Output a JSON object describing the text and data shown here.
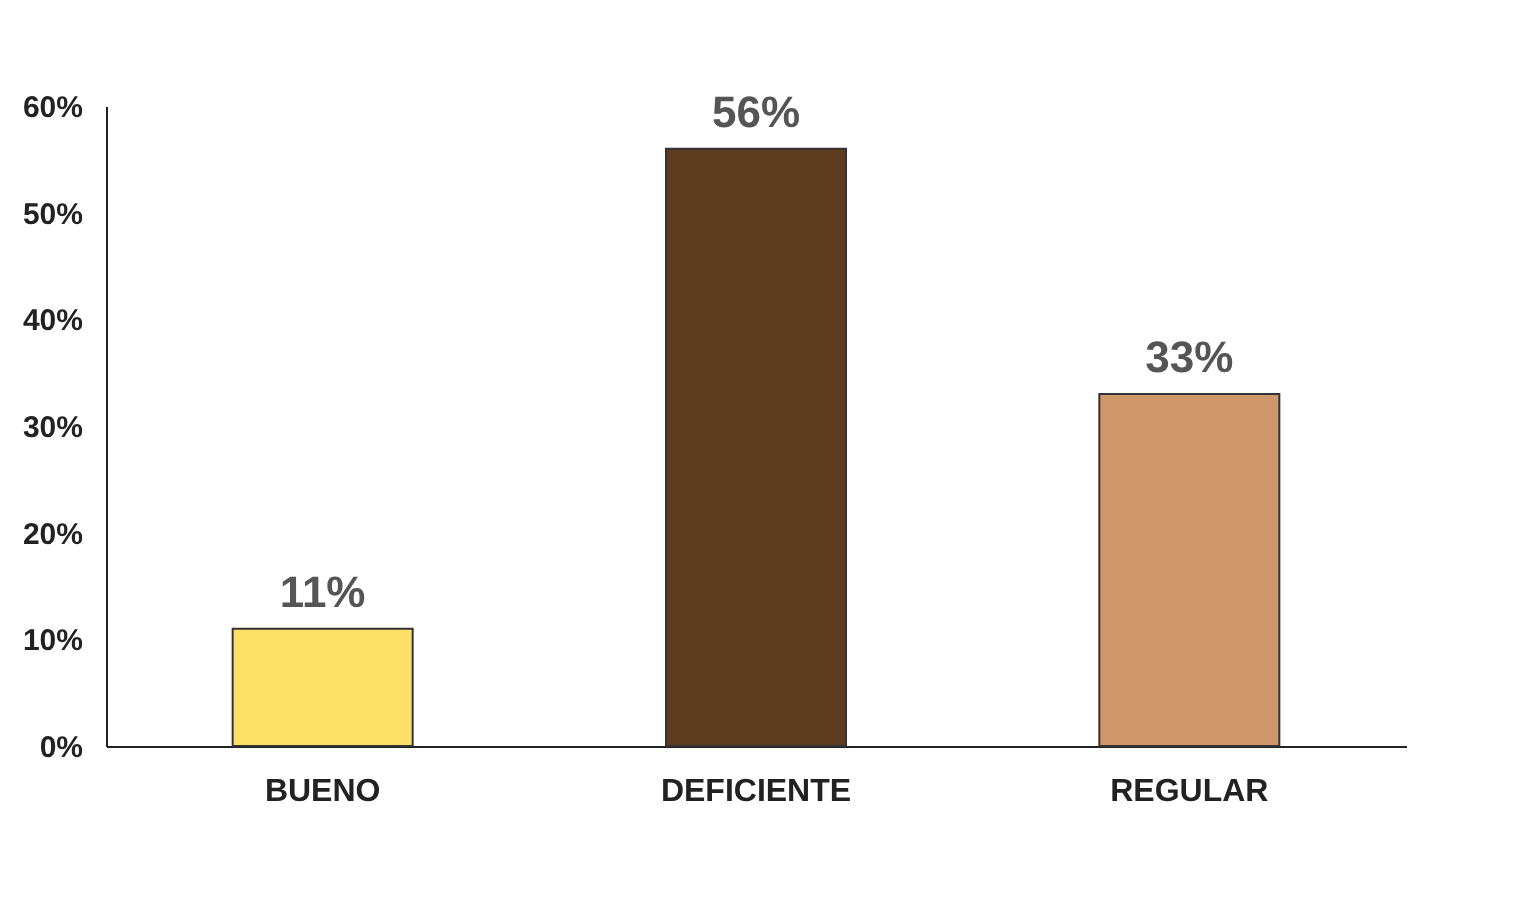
{
  "chart_data": {
    "type": "bar",
    "categories": [
      "BUENO",
      "DEFICIENTE",
      "REGULAR"
    ],
    "values": [
      11,
      56,
      33
    ],
    "colors": [
      "#fde068",
      "#5c3b1e",
      "#d0976a"
    ],
    "value_labels": [
      "11%",
      "56%",
      "33%"
    ],
    "ylim": [
      0,
      60
    ],
    "yticks": [
      {
        "value": 0,
        "label": "0%"
      },
      {
        "value": 10,
        "label": "10%"
      },
      {
        "value": 20,
        "label": "20%"
      },
      {
        "value": 30,
        "label": "30%"
      },
      {
        "value": 40,
        "label": "40%"
      },
      {
        "value": 50,
        "label": "50%"
      },
      {
        "value": 60,
        "label": "60%"
      }
    ],
    "grid": false
  }
}
